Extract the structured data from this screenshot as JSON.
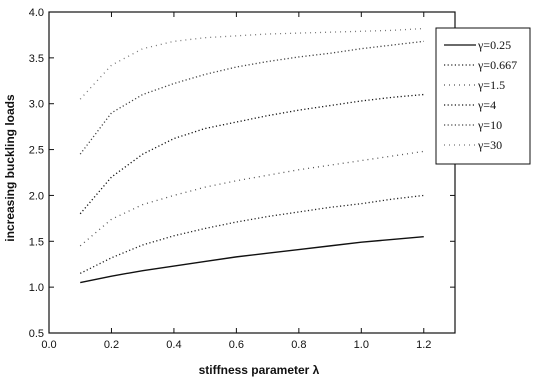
{
  "chart_data": {
    "type": "line",
    "title": "",
    "xlabel": "stiffness parameter λ",
    "ylabel": "increasing buckling loads",
    "xlim": [
      0.0,
      1.3
    ],
    "ylim": [
      0.5,
      4.0
    ],
    "xticks": [
      "0.0",
      "0.2",
      "0.4",
      "0.6",
      "0.8",
      "1.0",
      "1.2"
    ],
    "yticks": [
      "0.5",
      "1.0",
      "1.5",
      "2.0",
      "2.5",
      "3.0",
      "3.5",
      "4.0"
    ],
    "grid": false,
    "legend_position": "top-right",
    "x": [
      0.1,
      0.2,
      0.3,
      0.4,
      0.5,
      0.6,
      0.7,
      0.8,
      0.9,
      1.0,
      1.1,
      1.2
    ],
    "series": [
      {
        "name": "γ=0.25",
        "color": "#111111",
        "dash": "solid",
        "values": [
          1.05,
          1.12,
          1.18,
          1.23,
          1.28,
          1.33,
          1.37,
          1.41,
          1.45,
          1.49,
          1.52,
          1.55
        ]
      },
      {
        "name": "γ=0.667",
        "color": "#222222",
        "dash": "dot",
        "values": [
          1.15,
          1.32,
          1.46,
          1.56,
          1.64,
          1.71,
          1.77,
          1.82,
          1.87,
          1.91,
          1.96,
          2.0
        ]
      },
      {
        "name": "γ=1.5",
        "color": "#555555",
        "dash": "dot-sparse",
        "values": [
          1.45,
          1.74,
          1.9,
          2.0,
          2.09,
          2.16,
          2.22,
          2.28,
          2.33,
          2.38,
          2.43,
          2.48
        ]
      },
      {
        "name": "γ=4",
        "color": "#111111",
        "dash": "dot",
        "values": [
          1.8,
          2.2,
          2.45,
          2.62,
          2.73,
          2.8,
          2.87,
          2.93,
          2.98,
          3.03,
          3.07,
          3.1
        ]
      },
      {
        "name": "γ=10",
        "color": "#444444",
        "dash": "dot",
        "values": [
          2.45,
          2.9,
          3.1,
          3.22,
          3.32,
          3.4,
          3.46,
          3.51,
          3.55,
          3.6,
          3.64,
          3.68
        ]
      },
      {
        "name": "γ=30",
        "color": "#777777",
        "dash": "dot-sparse",
        "values": [
          3.05,
          3.42,
          3.6,
          3.68,
          3.72,
          3.74,
          3.76,
          3.77,
          3.78,
          3.79,
          3.8,
          3.82
        ]
      }
    ]
  }
}
